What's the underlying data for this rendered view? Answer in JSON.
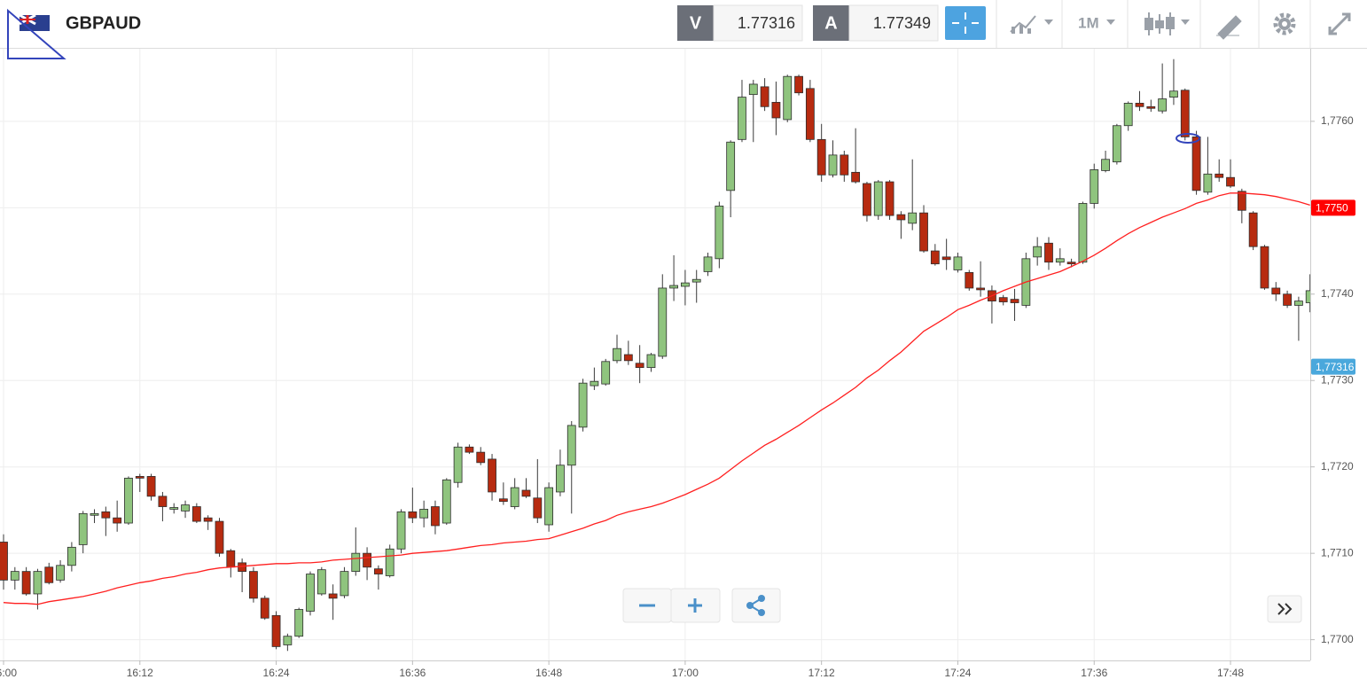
{
  "chart_data": {
    "type": "candlestick",
    "title": "GBPAUD",
    "timeframe": "1M",
    "bid": {
      "label": "V",
      "value": 1.77316
    },
    "ask": {
      "label": "A",
      "value": 1.77349
    },
    "categories": [
      "16:00",
      null,
      null,
      null,
      null,
      null,
      null,
      null,
      null,
      null,
      null,
      null,
      "16:12",
      null,
      null,
      null,
      null,
      null,
      null,
      null,
      null,
      null,
      null,
      null,
      "16:24",
      null,
      null,
      null,
      null,
      null,
      null,
      null,
      null,
      null,
      null,
      null,
      "16:36",
      null,
      null,
      null,
      null,
      null,
      null,
      null,
      null,
      null,
      null,
      null,
      "16:48",
      null,
      null,
      null,
      null,
      null,
      null,
      null,
      null,
      null,
      null,
      null,
      "17:00",
      null,
      null,
      null,
      null,
      null,
      null,
      null,
      null,
      null,
      null,
      null,
      "17:12",
      null,
      null,
      null,
      null,
      null,
      null,
      null,
      null,
      null,
      null,
      null,
      "17:24",
      null,
      null,
      null,
      null,
      null,
      null,
      null,
      null,
      null,
      null,
      null,
      "17:36",
      null,
      null,
      null,
      null,
      null,
      null,
      null,
      null,
      null,
      null,
      null,
      "17:48",
      null,
      null,
      null,
      null,
      null,
      null,
      null
    ],
    "open": [
      1.77113,
      1.77069,
      1.77079,
      1.77053,
      1.77084,
      1.77069,
      1.77086,
      1.7711,
      1.77144,
      1.77148,
      1.77141,
      1.77135,
      1.77189,
      1.77189,
      1.77166,
      1.77151,
      1.77149,
      1.77154,
      1.77141,
      1.77137,
      1.77103,
      1.77089,
      1.77079,
      1.77048,
      1.77028,
      1.76994,
      1.77004,
      1.77033,
      1.77053,
      1.77053,
      1.77051,
      1.77079,
      1.771,
      1.77082,
      1.77074,
      1.77105,
      1.77148,
      1.77141,
      1.77154,
      1.77135,
      1.77182,
      1.77223,
      1.77217,
      1.77209,
      1.77163,
      1.77154,
      1.77173,
      1.77164,
      1.77133,
      1.77171,
      1.77202,
      1.77246,
      1.77294,
      1.77296,
      1.77323,
      1.7733,
      1.7732,
      1.77315,
      1.77328,
      1.77407,
      1.77409,
      1.77414,
      1.77426,
      1.77441,
      1.7752,
      1.77579,
      1.77631,
      1.7764,
      1.77622,
      1.77602,
      1.77652,
      1.77638,
      1.77579,
      1.77538,
      1.77561,
      1.77541,
      1.77528,
      1.77491,
      1.7753,
      1.77492,
      1.77482,
      1.77494,
      1.7745,
      1.77443,
      1.77428,
      1.77425,
      1.77407,
      1.77404,
      1.77396,
      1.77394,
      1.77387,
      1.77443,
      1.77459,
      1.77437,
      1.77437,
      1.77437,
      1.77505,
      1.77543,
      1.77553,
      1.77595,
      1.77621,
      1.77617,
      1.77612,
      1.77628,
      1.77636,
      1.77582,
      1.77518,
      1.77539,
      1.77535,
      1.77519,
      1.77494,
      1.77455,
      1.77407,
      1.774,
      1.77387,
      1.7739
    ],
    "high": [
      1.77122,
      1.77084,
      1.77084,
      1.77082,
      1.77089,
      1.77092,
      1.77113,
      1.77149,
      1.77151,
      1.77154,
      1.77161,
      1.77189,
      1.77192,
      1.77192,
      1.77171,
      1.77158,
      1.77161,
      1.77158,
      1.77144,
      1.77141,
      1.77105,
      1.77094,
      1.77084,
      1.77051,
      1.77033,
      1.77007,
      1.77037,
      1.77079,
      1.77084,
      1.77064,
      1.77084,
      1.7713,
      1.77107,
      1.77086,
      1.7711,
      1.77151,
      1.77176,
      1.77161,
      1.77161,
      1.77187,
      1.77228,
      1.77226,
      1.77223,
      1.77215,
      1.77182,
      1.77187,
      1.77187,
      1.77209,
      1.77182,
      1.7722,
      1.77253,
      1.77302,
      1.77315,
      1.77325,
      1.77353,
      1.77346,
      1.77341,
      1.77332,
      1.77423,
      1.77445,
      1.77428,
      1.77428,
      1.77448,
      1.77507,
      1.77578,
      1.77648,
      1.77648,
      1.7765,
      1.77646,
      1.77654,
      1.77654,
      1.77648,
      1.77597,
      1.77578,
      1.77566,
      1.77592,
      1.7753,
      1.77532,
      1.77532,
      1.77496,
      1.77556,
      1.77503,
      1.77458,
      1.77464,
      1.77448,
      1.77428,
      1.77438,
      1.7741,
      1.77399,
      1.77406,
      1.77448,
      1.77466,
      1.77466,
      1.77453,
      1.77441,
      1.77507,
      1.77551,
      1.77566,
      1.77597,
      1.77623,
      1.77635,
      1.77625,
      1.77667,
      1.77672,
      1.77638,
      1.77589,
      1.77582,
      1.77556,
      1.77556,
      1.77522,
      1.77496,
      1.77457,
      1.77414,
      1.77404,
      1.77397,
      1.77423
    ],
    "low": [
      1.77058,
      1.77058,
      1.77051,
      1.77035,
      1.77064,
      1.77066,
      1.77079,
      1.771,
      1.77135,
      1.7712,
      1.77125,
      1.77133,
      1.77171,
      1.77161,
      1.77137,
      1.77146,
      1.77141,
      1.77135,
      1.77127,
      1.77096,
      1.77072,
      1.77055,
      1.77043,
      1.77023,
      1.76989,
      1.76987,
      1.77002,
      1.77028,
      1.77051,
      1.77023,
      1.77048,
      1.77074,
      1.77069,
      1.77058,
      1.77072,
      1.771,
      1.77135,
      1.7713,
      1.77122,
      1.77133,
      1.77176,
      1.77215,
      1.77202,
      1.77161,
      1.77156,
      1.77151,
      1.77164,
      1.77135,
      1.77125,
      1.77166,
      1.77146,
      1.77241,
      1.77289,
      1.77294,
      1.7732,
      1.77318,
      1.77297,
      1.7731,
      1.77325,
      1.77392,
      1.77387,
      1.7739,
      1.77421,
      1.7743,
      1.77489,
      1.77576,
      1.77576,
      1.77612,
      1.77584,
      1.77599,
      1.7763,
      1.77576,
      1.7753,
      1.77535,
      1.7753,
      1.77528,
      1.77484,
      1.77486,
      1.77486,
      1.77464,
      1.77474,
      1.77448,
      1.77433,
      1.77428,
      1.77425,
      1.77404,
      1.77397,
      1.77366,
      1.77387,
      1.77369,
      1.77384,
      1.77433,
      1.77428,
      1.77433,
      1.77431,
      1.77435,
      1.77499,
      1.77541,
      1.7755,
      1.77589,
      1.77612,
      1.77611,
      1.77609,
      1.77619,
      1.77578,
      1.77515,
      1.77515,
      1.7753,
      1.77523,
      1.77482,
      1.77451,
      1.77405,
      1.77392,
      1.77384,
      1.77346,
      1.77379
    ],
    "close": [
      1.77069,
      1.77079,
      1.77053,
      1.77079,
      1.77066,
      1.77086,
      1.77107,
      1.77146,
      1.77146,
      1.77141,
      1.77135,
      1.77187,
      1.77187,
      1.77166,
      1.77154,
      1.77153,
      1.77156,
      1.77137,
      1.77137,
      1.771,
      1.77084,
      1.77079,
      1.77048,
      1.77025,
      1.76992,
      1.77004,
      1.77035,
      1.77076,
      1.77081,
      1.77048,
      1.77079,
      1.771,
      1.77084,
      1.77076,
      1.77105,
      1.77148,
      1.77141,
      1.77151,
      1.77132,
      1.77185,
      1.77223,
      1.77217,
      1.77205,
      1.77171,
      1.7716,
      1.77176,
      1.77166,
      1.77141,
      1.77176,
      1.77202,
      1.77248,
      1.77297,
      1.77299,
      1.77322,
      1.77337,
      1.77323,
      1.77315,
      1.7733,
      1.77407,
      1.7741,
      1.77413,
      1.77417,
      1.77443,
      1.77502,
      1.77576,
      1.77628,
      1.77643,
      1.77617,
      1.77604,
      1.77652,
      1.77633,
      1.77579,
      1.77538,
      1.77561,
      1.77538,
      1.7753,
      1.77491,
      1.7753,
      1.77491,
      1.77486,
      1.77494,
      1.7745,
      1.77435,
      1.7744,
      1.77443,
      1.77407,
      1.77405,
      1.77392,
      1.77391,
      1.7739,
      1.77441,
      1.77455,
      1.77437,
      1.77441,
      1.77435,
      1.77505,
      1.77544,
      1.77556,
      1.77595,
      1.77621,
      1.77617,
      1.77615,
      1.77626,
      1.77635,
      1.77582,
      1.7752,
      1.77539,
      1.77535,
      1.77525,
      1.77497,
      1.77455,
      1.77407,
      1.774,
      1.77387,
      1.77392,
      1.77404
    ],
    "up_color": "#8fc47e",
    "down_color": "#b72b10",
    "ma": {
      "color": "#ff2020",
      "values": [
        1.77043,
        1.77042,
        1.77042,
        1.77041,
        1.77044,
        1.77046,
        1.77048,
        1.7705,
        1.77053,
        1.77056,
        1.7706,
        1.77063,
        1.77066,
        1.77068,
        1.77071,
        1.77073,
        1.77076,
        1.77078,
        1.77081,
        1.77083,
        1.77084,
        1.77085,
        1.77086,
        1.77087,
        1.77088,
        1.77088,
        1.77089,
        1.77089,
        1.7709,
        1.77092,
        1.77093,
        1.77094,
        1.77095,
        1.77096,
        1.77097,
        1.77098,
        1.771,
        1.77101,
        1.77102,
        1.77103,
        1.77105,
        1.77107,
        1.77109,
        1.7711,
        1.77112,
        1.77113,
        1.77114,
        1.77116,
        1.77117,
        1.77121,
        1.77125,
        1.77129,
        1.77134,
        1.77138,
        1.77144,
        1.77148,
        1.77151,
        1.77154,
        1.77158,
        1.77163,
        1.77168,
        1.77174,
        1.7718,
        1.77187,
        1.77197,
        1.77207,
        1.77216,
        1.77225,
        1.77232,
        1.7724,
        1.77248,
        1.77257,
        1.77266,
        1.77274,
        1.77283,
        1.77292,
        1.77303,
        1.77312,
        1.77323,
        1.77333,
        1.77345,
        1.77357,
        1.77365,
        1.77373,
        1.77382,
        1.77387,
        1.77393,
        1.77398,
        1.77404,
        1.77409,
        1.77414,
        1.77418,
        1.77422,
        1.77426,
        1.77432,
        1.77438,
        1.77445,
        1.77453,
        1.77462,
        1.7747,
        1.77477,
        1.77483,
        1.77489,
        1.77494,
        1.77499,
        1.77505,
        1.77509,
        1.77514,
        1.77517,
        1.77517,
        1.77516,
        1.77515,
        1.77513,
        1.7751,
        1.77507,
        1.77503
      ]
    },
    "ma_label": {
      "value": 1.775,
      "label": "1,7750",
      "color": "#ff0000"
    },
    "price_label": {
      "value": 1.77316,
      "label": "1,77316",
      "color": "#4aa8dc"
    },
    "ylim": [
      1.76976,
      1.77684
    ],
    "yticks": [
      {
        "value": 1.77,
        "label": "1,7700"
      },
      {
        "value": 1.771,
        "label": "1,7710"
      },
      {
        "value": 1.772,
        "label": "1,7720"
      },
      {
        "value": 1.773,
        "label": "1,7730"
      },
      {
        "value": 1.774,
        "label": "1,7740"
      },
      {
        "value": 1.775,
        "label": "1,7750"
      },
      {
        "value": 1.776,
        "label": "1,7760"
      }
    ],
    "grid": true
  }
}
